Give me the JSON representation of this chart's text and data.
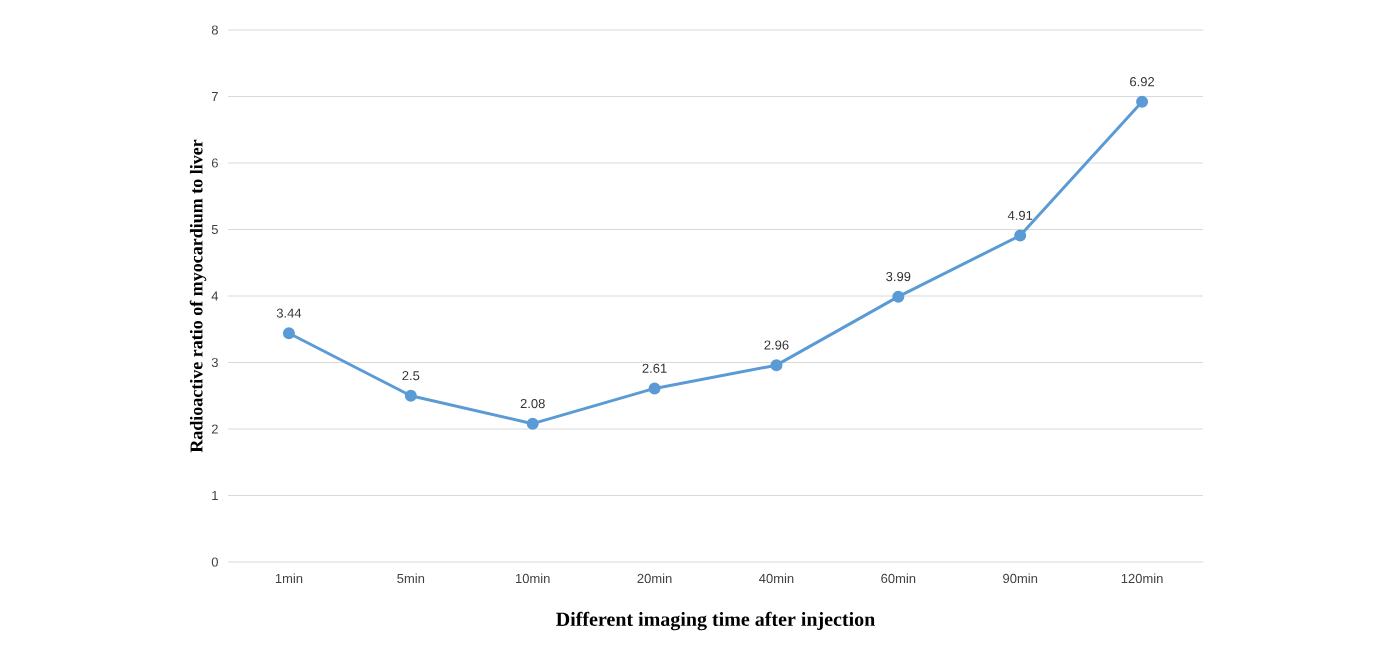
{
  "chart_data": {
    "type": "line",
    "xlabel": "Different imaging time after injection",
    "ylabel": "Radioactive ratio of myocardium to liver",
    "categories": [
      "1min",
      "5min",
      "10min",
      "20min",
      "40min",
      "60min",
      "90min",
      "120min"
    ],
    "values": [
      3.44,
      2.5,
      2.08,
      2.61,
      2.96,
      3.99,
      4.91,
      6.92
    ],
    "color": "#5b9bd5",
    "marker": "circle",
    "line_style": "solid",
    "ylim": [
      0,
      8
    ],
    "yticks": [
      0,
      1,
      2,
      3,
      4,
      5,
      6,
      7,
      8
    ],
    "grid": "y",
    "data_labels": true
  }
}
